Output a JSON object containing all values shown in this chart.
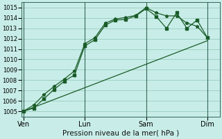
{
  "bg_color": "#c8ede8",
  "grid_color": "#99ccbb",
  "line_color": "#1a5c28",
  "xtick_labels": [
    "Ven",
    "Lun",
    "Sam",
    "Dim"
  ],
  "xtick_positions": [
    0,
    3,
    6,
    9
  ],
  "xlabel": "Pression niveau de la mer( hPa )",
  "ylim": [
    1004.5,
    1015.5
  ],
  "yticks": [
    1005,
    1006,
    1007,
    1008,
    1009,
    1010,
    1011,
    1012,
    1013,
    1014,
    1015
  ],
  "xlim": [
    -0.1,
    9.6
  ],
  "line1_x": [
    0,
    0.5,
    1.0,
    1.5,
    2.0,
    2.5,
    3.0,
    3.5,
    4.0,
    4.5,
    5.0,
    5.5,
    6.0,
    6.5,
    7.0,
    7.5,
    8.0,
    8.5,
    9.0
  ],
  "line1_y": [
    1005.0,
    1005.3,
    1006.2,
    1007.1,
    1007.9,
    1008.5,
    1011.3,
    1011.9,
    1013.3,
    1013.8,
    1013.85,
    1014.2,
    1014.9,
    1014.15,
    1013.0,
    1014.5,
    1013.0,
    1013.8,
    1012.1
  ],
  "line2_x": [
    0,
    0.5,
    1.0,
    1.5,
    2.0,
    2.5,
    3.0,
    3.5,
    4.0,
    4.5,
    5.0,
    5.5,
    6.0,
    6.5,
    7.0,
    7.5,
    8.0,
    8.5,
    9.0
  ],
  "line2_y": [
    1005.0,
    1005.6,
    1006.6,
    1007.4,
    1008.1,
    1008.9,
    1011.5,
    1012.1,
    1013.5,
    1013.9,
    1014.05,
    1014.25,
    1015.0,
    1014.5,
    1014.2,
    1014.2,
    1013.5,
    1013.2,
    1012.1
  ],
  "line3_x": [
    0,
    9
  ],
  "line3_y": [
    1005.0,
    1011.8
  ],
  "vline_positions": [
    0,
    3,
    6,
    9
  ],
  "vline_color": "#336655",
  "spine_color": "#336655",
  "ytick_fontsize": 6,
  "xtick_fontsize": 7,
  "xlabel_fontsize": 7.5
}
